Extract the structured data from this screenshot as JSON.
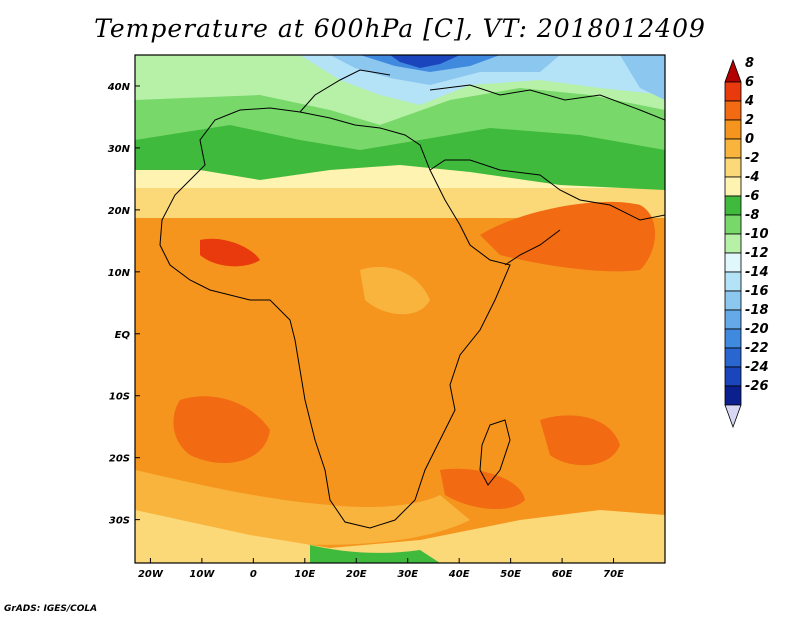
{
  "title": "Temperature at 600hPa [C], VT: 2018012409",
  "credit": "GrADS: IGES/COLA",
  "map": {
    "lon_range": [
      -23,
      80
    ],
    "lat_range": [
      -37,
      45
    ],
    "lon_ticks": [
      {
        "value": -20,
        "label": "20W"
      },
      {
        "value": -10,
        "label": "10W"
      },
      {
        "value": 0,
        "label": "0"
      },
      {
        "value": 10,
        "label": "10E"
      },
      {
        "value": 20,
        "label": "20E"
      },
      {
        "value": 30,
        "label": "30E"
      },
      {
        "value": 40,
        "label": "40E"
      },
      {
        "value": 50,
        "label": "50E"
      },
      {
        "value": 60,
        "label": "60E"
      },
      {
        "value": 70,
        "label": "70E"
      }
    ],
    "lat_ticks": [
      {
        "value": 40,
        "label": "40N"
      },
      {
        "value": 30,
        "label": "30N"
      },
      {
        "value": 20,
        "label": "20N"
      },
      {
        "value": 10,
        "label": "10N"
      },
      {
        "value": 0,
        "label": "EQ"
      },
      {
        "value": -10,
        "label": "10S"
      },
      {
        "value": -20,
        "label": "20S"
      },
      {
        "value": -30,
        "label": "30S"
      }
    ]
  },
  "colorbar": {
    "levels": [
      {
        "label": "8",
        "color": "#b30000"
      },
      {
        "label": "6",
        "color": "#e83a0c"
      },
      {
        "label": "4",
        "color": "#f26a11"
      },
      {
        "label": "2",
        "color": "#f5951e"
      },
      {
        "label": "0",
        "color": "#f8b43c"
      },
      {
        "label": "-2",
        "color": "#fbd878"
      },
      {
        "label": "-4",
        "color": "#fff3b2"
      },
      {
        "label": "-6",
        "color": "#3fba3c"
      },
      {
        "label": "-8",
        "color": "#78d86a"
      },
      {
        "label": "-10",
        "color": "#b7f0a7"
      },
      {
        "label": "-12",
        "color": "#e0f7fb"
      },
      {
        "label": "-14",
        "color": "#b4e2f7"
      },
      {
        "label": "-16",
        "color": "#8cc7f0"
      },
      {
        "label": "-18",
        "color": "#64a9e8"
      },
      {
        "label": "-20",
        "color": "#3f89de"
      },
      {
        "label": "-22",
        "color": "#2a66cf"
      },
      {
        "label": "-24",
        "color": "#1b45bc"
      },
      {
        "label": "-26",
        "color": "#0b1f8e"
      }
    ],
    "below_color": "#d8d8f5"
  }
}
